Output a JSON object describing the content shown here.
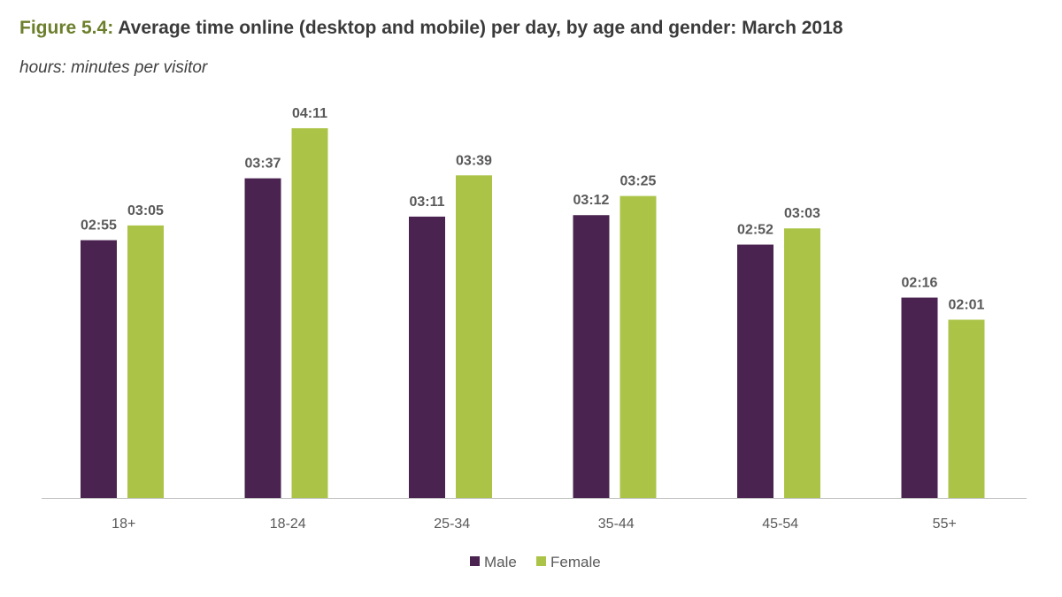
{
  "header": {
    "figure_label": "Figure 5.4:",
    "title_text": " Average time online (desktop and mobile) per day, by age and gender: March 2018",
    "subtitle": "hours: minutes per visitor"
  },
  "colors": {
    "male": "#4a2350",
    "female": "#abc447",
    "axis": "#bfbfbf"
  },
  "chart_data": {
    "type": "bar",
    "title": "Average time online (desktop and mobile) per day, by age and gender: March 2018",
    "subtitle": "hours: minutes per visitor",
    "xlabel": "",
    "ylabel": "",
    "categories": [
      "18+",
      "18-24",
      "25-34",
      "35-44",
      "45-54",
      "55+"
    ],
    "series": [
      {
        "name": "Male",
        "values_minutes": [
          175,
          217,
          191,
          192,
          172,
          136
        ],
        "labels": [
          "02:55",
          "03:37",
          "03:11",
          "03:12",
          "02:52",
          "02:16"
        ]
      },
      {
        "name": "Female",
        "values_minutes": [
          185,
          251,
          219,
          205,
          183,
          121
        ],
        "labels": [
          "03:05",
          "04:11",
          "03:39",
          "03:25",
          "03:03",
          "02:01"
        ]
      }
    ],
    "ylim_minutes": [
      0,
      260
    ],
    "grid": false,
    "legend": "bottom-center"
  }
}
